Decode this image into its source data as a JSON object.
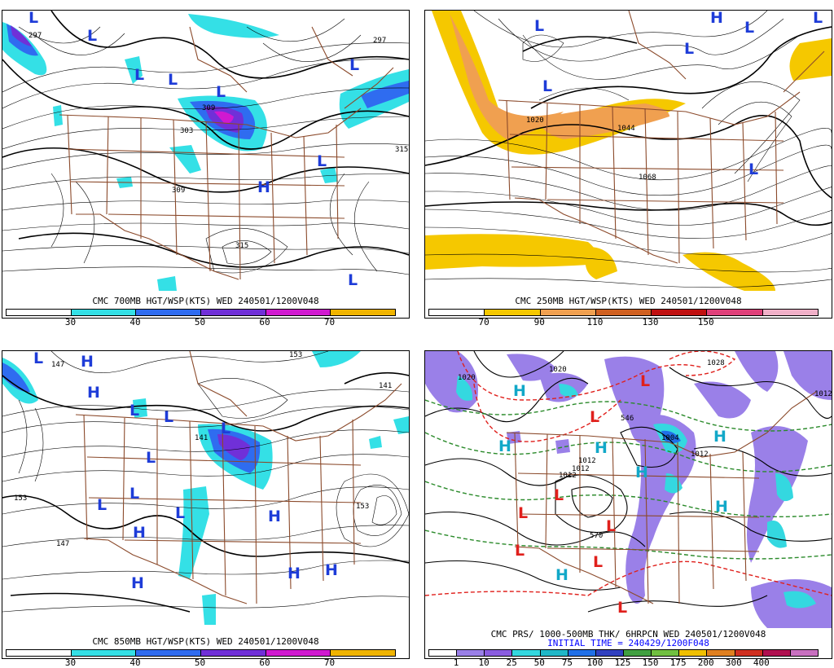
{
  "colors": {
    "H": "#1e3cd8",
    "L": "#1e3cd8",
    "L_red": "#e0201c",
    "H_cyan": "#12a8c8",
    "states": "#8b4a2b",
    "contour": "#000000"
  },
  "panels": [
    {
      "id": "p700",
      "title": "CMC 700MB HGT/WSP(KTS) WED 240501/1200V048",
      "legend_colors": [
        "#ffffff",
        "#34e0e6",
        "#2f6cf0",
        "#7030d8",
        "#d019d0",
        "#f0b400"
      ],
      "legend_ticks": [
        "30",
        "40",
        "50",
        "60",
        "70"
      ],
      "contour_labels": [
        "297",
        "303",
        "309",
        "315",
        "315",
        "297",
        "309"
      ],
      "symbols": [
        {
          "t": "L",
          "c": "L"
        },
        {
          "t": "L",
          "c": "L"
        },
        {
          "t": "L",
          "c": "L"
        },
        {
          "t": "L",
          "c": "L"
        },
        {
          "t": "L",
          "c": "L"
        },
        {
          "t": "L",
          "c": "L"
        },
        {
          "t": "L",
          "c": "L"
        },
        {
          "t": "H",
          "c": "H"
        },
        {
          "t": "L",
          "c": "L"
        }
      ]
    },
    {
      "id": "p250",
      "title": "CMC 250MB HGT/WSP(KTS) WED 240501/1200V048",
      "legend_colors": [
        "#ffffff",
        "#f5c800",
        "#f0a050",
        "#d06020",
        "#c01010",
        "#e0407a",
        "#f0b0c8"
      ],
      "legend_ticks": [
        "70",
        "90",
        "110",
        "130",
        "150"
      ],
      "contour_labels": [
        "1020",
        "1044",
        "1068"
      ],
      "symbols": [
        {
          "t": "H",
          "c": "H"
        },
        {
          "t": "L",
          "c": "L"
        },
        {
          "t": "L",
          "c": "L"
        },
        {
          "t": "L",
          "c": "L"
        },
        {
          "t": "L",
          "c": "L"
        },
        {
          "t": "L",
          "c": "L"
        },
        {
          "t": "L",
          "c": "L"
        }
      ]
    },
    {
      "id": "p850",
      "title": "CMC 850MB HGT/WSP(KTS) WED 240501/1200V048",
      "legend_colors": [
        "#ffffff",
        "#34e0e6",
        "#2f6cf0",
        "#7030d8",
        "#d019d0",
        "#f0b400"
      ],
      "legend_ticks": [
        "30",
        "40",
        "50",
        "60",
        "70"
      ],
      "contour_labels": [
        "147",
        "153",
        "141",
        "153",
        "147",
        "141",
        "153"
      ],
      "symbols": [
        {
          "t": "L",
          "c": "L"
        },
        {
          "t": "H",
          "c": "H"
        },
        {
          "t": "H",
          "c": "H"
        },
        {
          "t": "L",
          "c": "L"
        },
        {
          "t": "L",
          "c": "L"
        },
        {
          "t": "L",
          "c": "L"
        },
        {
          "t": "L",
          "c": "L"
        },
        {
          "t": "L",
          "c": "L"
        },
        {
          "t": "L",
          "c": "L"
        },
        {
          "t": "L",
          "c": "L"
        },
        {
          "t": "H",
          "c": "H"
        },
        {
          "t": "H",
          "c": "H"
        },
        {
          "t": "H",
          "c": "H"
        },
        {
          "t": "H",
          "c": "H"
        },
        {
          "t": "H",
          "c": "H"
        }
      ]
    },
    {
      "id": "pprs",
      "title": "CMC PRS/ 1000-500MB THK/ 6HRPCN WED 240501/1200V048",
      "subtitle": "INITIAL TIME = 240429/1200F048",
      "legend_colors": [
        "#ffffff",
        "#9a80e8",
        "#8a5ce0",
        "#34d8e0",
        "#20b8c8",
        "#2070e8",
        "#3040c0",
        "#40a040",
        "#70c040",
        "#f0c000",
        "#e08020",
        "#d03020",
        "#b01050",
        "#c870c0"
      ],
      "legend_ticks": [
        "1",
        "10",
        "25",
        "50",
        "75",
        "100",
        "125",
        "150",
        "175",
        "200",
        "300",
        "400"
      ],
      "contour_labels": [
        "1020",
        "1020",
        "1028",
        "1012",
        "1012",
        "1004",
        "1012",
        "1012",
        "570",
        "546",
        "1012"
      ],
      "symbols": [
        {
          "t": "H",
          "c": "H_cyan"
        },
        {
          "t": "H",
          "c": "H_cyan"
        },
        {
          "t": "H",
          "c": "H_cyan"
        },
        {
          "t": "H",
          "c": "H_cyan"
        },
        {
          "t": "H",
          "c": "H_cyan"
        },
        {
          "t": "H",
          "c": "H_cyan"
        },
        {
          "t": "H",
          "c": "H_cyan"
        },
        {
          "t": "L",
          "c": "L_red"
        },
        {
          "t": "L",
          "c": "L_red"
        },
        {
          "t": "L",
          "c": "L_red"
        },
        {
          "t": "L",
          "c": "L_red"
        },
        {
          "t": "L",
          "c": "L_red"
        },
        {
          "t": "L",
          "c": "L_red"
        },
        {
          "t": "L",
          "c": "L_red"
        },
        {
          "t": "L",
          "c": "L_red"
        }
      ]
    }
  ]
}
